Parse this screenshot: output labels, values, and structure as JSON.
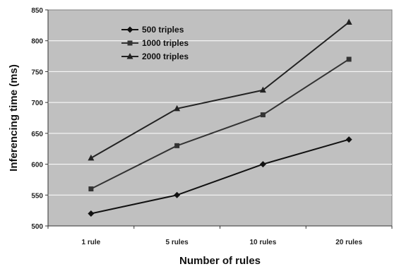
{
  "chart_data": {
    "type": "line",
    "categories": [
      "1 rule",
      "5 rules",
      "10 rules",
      "20 rules"
    ],
    "series": [
      {
        "name": "500 triples",
        "values": [
          520,
          550,
          600,
          640
        ],
        "marker": "diamond",
        "color": "#111111"
      },
      {
        "name": "1000 triples",
        "values": [
          560,
          630,
          680,
          770
        ],
        "marker": "square",
        "color": "#333333"
      },
      {
        "name": "2000 triples",
        "values": [
          610,
          690,
          720,
          830
        ],
        "marker": "triangle",
        "color": "#222222"
      }
    ],
    "xlabel": "Number of rules",
    "ylabel": "Inferencing time (ms)",
    "ylim": [
      500,
      850
    ],
    "yticks": [
      500,
      550,
      600,
      650,
      700,
      750,
      800,
      850
    ],
    "grid": true,
    "legend_position": "top-left",
    "plot_background": "#c0c0c0",
    "grid_color": "#ffffff"
  }
}
